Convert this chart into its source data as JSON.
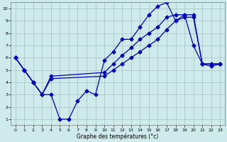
{
  "xlabel": "Graphe des températures (°c)",
  "bg_color": "#ceeaea",
  "grid_color": "#aacaca",
  "line_color": "#0000bb",
  "xlim": [
    -0.5,
    23.5
  ],
  "ylim": [
    0.5,
    10.5
  ],
  "xticks": [
    0,
    1,
    2,
    3,
    4,
    5,
    6,
    7,
    8,
    9,
    10,
    11,
    12,
    13,
    14,
    15,
    16,
    17,
    18,
    19,
    20,
    21,
    22,
    23
  ],
  "yticks": [
    1,
    2,
    3,
    4,
    5,
    6,
    7,
    8,
    9,
    10
  ],
  "s1x": [
    0,
    1,
    2,
    3,
    4,
    5,
    6,
    7,
    8,
    9,
    10,
    11,
    12,
    13,
    14,
    15,
    16,
    17,
    18,
    19,
    20,
    21,
    22,
    23
  ],
  "s1y": [
    6.0,
    5.0,
    4.0,
    3.0,
    3.0,
    1.0,
    1.0,
    2.5,
    3.3,
    3.0,
    5.8,
    6.5,
    7.5,
    7.5,
    8.5,
    9.5,
    10.2,
    10.5,
    9.0,
    9.5,
    7.0,
    5.5,
    5.5,
    5.5
  ],
  "s2x": [
    0,
    1,
    2,
    3,
    4,
    10,
    11,
    12,
    13,
    14,
    15,
    16,
    17,
    18,
    19,
    20,
    21,
    22,
    23
  ],
  "s2y": [
    6.0,
    5.0,
    4.0,
    3.0,
    4.5,
    4.8,
    5.5,
    6.2,
    6.8,
    7.5,
    8.0,
    8.5,
    9.3,
    9.5,
    9.5,
    9.5,
    5.5,
    5.5,
    5.5
  ],
  "s3x": [
    0,
    1,
    2,
    3,
    4,
    10,
    11,
    12,
    13,
    14,
    15,
    16,
    17,
    18,
    19,
    20,
    21,
    22,
    23
  ],
  "s3y": [
    6.0,
    5.0,
    4.0,
    3.0,
    4.3,
    4.5,
    5.0,
    5.5,
    6.0,
    6.5,
    7.0,
    7.5,
    8.3,
    9.0,
    9.3,
    9.3,
    5.5,
    5.3,
    5.5
  ]
}
